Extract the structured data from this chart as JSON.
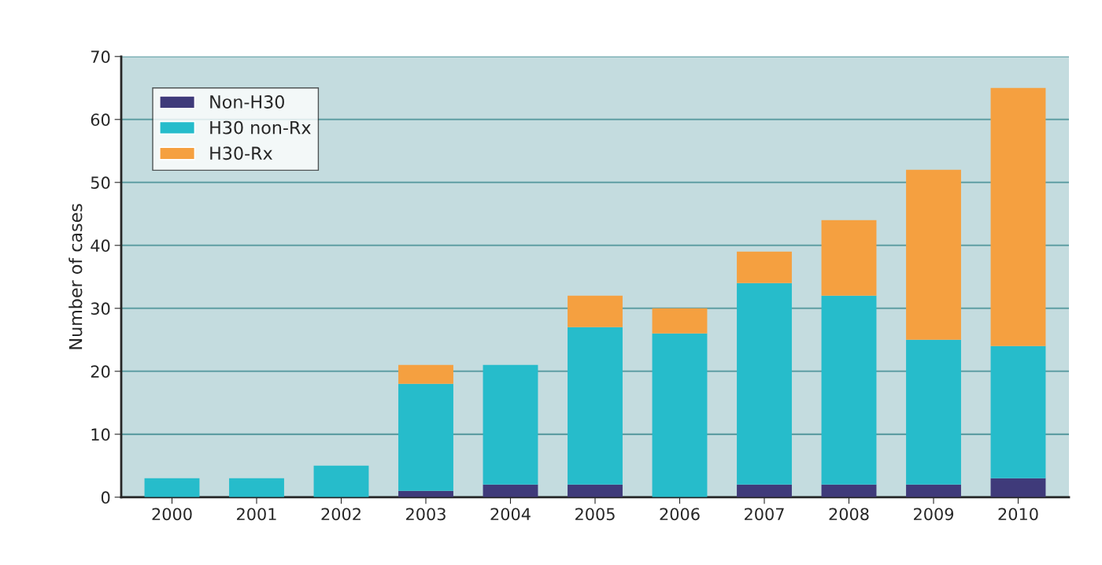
{
  "chart_data": {
    "type": "bar",
    "stacked": true,
    "ylabel": "Number of cases",
    "categories": [
      "2000",
      "2001",
      "2002",
      "2003",
      "2004",
      "2005",
      "2006",
      "2007",
      "2008",
      "2009",
      "2010"
    ],
    "series": [
      {
        "name": "Non-H30",
        "color": "#3f3a7a",
        "values": [
          0,
          0,
          0,
          1,
          2,
          2,
          0,
          2,
          2,
          2,
          3
        ]
      },
      {
        "name": "H30 non-Rx",
        "color": "#26bccb",
        "values": [
          3,
          3,
          5,
          17,
          19,
          25,
          26,
          32,
          30,
          23,
          21
        ]
      },
      {
        "name": "H30-Rx",
        "color": "#f5a040",
        "values": [
          0,
          0,
          0,
          3,
          0,
          5,
          4,
          5,
          12,
          27,
          41
        ]
      }
    ],
    "ylim": [
      0,
      70
    ],
    "yticks": [
      0,
      10,
      20,
      30,
      40,
      50,
      60,
      70
    ],
    "grid": "y",
    "legend": "top left"
  }
}
